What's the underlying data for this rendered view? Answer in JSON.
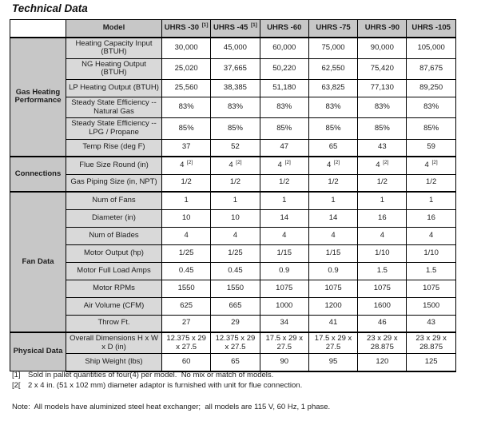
{
  "page_title": "Technical Data",
  "table": {
    "header": {
      "model_label": "Model",
      "columns": [
        {
          "name": "UHRS -30",
          "sup": "[1]"
        },
        {
          "name": "UHRS -45",
          "sup": "[1]"
        },
        {
          "name": "UHRS -60",
          "sup": ""
        },
        {
          "name": "UHRS -75",
          "sup": ""
        },
        {
          "name": "UHRS -90",
          "sup": ""
        },
        {
          "name": "UHRS -105",
          "sup": ""
        }
      ]
    },
    "sections": [
      {
        "group": "Gas Heating Performance",
        "rows": [
          {
            "label": "Heating Capacity Input (BTUH)",
            "values": [
              "30,000",
              "45,000",
              "60,000",
              "75,000",
              "90,000",
              "105,000"
            ]
          },
          {
            "label": "NG Heating Output (BTUH)",
            "values": [
              "25,020",
              "37,665",
              "50,220",
              "62,550",
              "75,420",
              "87,675"
            ]
          },
          {
            "label": "LP Heating Output (BTUH)",
            "values": [
              "25,560",
              "38,385",
              "51,180",
              "63,825",
              "77,130",
              "89,250"
            ]
          },
          {
            "label": "Steady State Efficiency -- Natural Gas",
            "values": [
              "83%",
              "83%",
              "83%",
              "83%",
              "83%",
              "83%"
            ]
          },
          {
            "label": "Steady State Efficiency -- LPG / Propane",
            "values": [
              "85%",
              "85%",
              "85%",
              "85%",
              "85%",
              "85%"
            ]
          },
          {
            "label": "Temp Rise (deg F)",
            "values": [
              "37",
              "52",
              "47",
              "65",
              "43",
              "59"
            ]
          }
        ]
      },
      {
        "group": "Connections",
        "rows": [
          {
            "label": "Flue Size Round (in)",
            "values": [
              "4",
              "4",
              "4",
              "4",
              "4",
              "4"
            ],
            "value_sup": "[2]"
          },
          {
            "label": "Gas Piping Size (in, NPT)",
            "values": [
              "1/2",
              "1/2",
              "1/2",
              "1/2",
              "1/2",
              "1/2"
            ]
          }
        ]
      },
      {
        "group": "Fan Data",
        "rows": [
          {
            "label": "Num of Fans",
            "values": [
              "1",
              "1",
              "1",
              "1",
              "1",
              "1"
            ]
          },
          {
            "label": "Diameter (in)",
            "values": [
              "10",
              "10",
              "14",
              "14",
              "16",
              "16"
            ]
          },
          {
            "label": "Num of Blades",
            "values": [
              "4",
              "4",
              "4",
              "4",
              "4",
              "4"
            ]
          },
          {
            "label": "Motor Output (hp)",
            "values": [
              "1/25",
              "1/25",
              "1/15",
              "1/15",
              "1/10",
              "1/10"
            ]
          },
          {
            "label": "Motor Full Load Amps",
            "values": [
              "0.45",
              "0.45",
              "0.9",
              "0.9",
              "1.5",
              "1.5"
            ]
          },
          {
            "label": "Motor RPMs",
            "values": [
              "1550",
              "1550",
              "1075",
              "1075",
              "1075",
              "1075"
            ]
          },
          {
            "label": "Air Volume (CFM)",
            "values": [
              "625",
              "665",
              "1000",
              "1200",
              "1600",
              "1500"
            ]
          },
          {
            "label": "Throw Ft.",
            "values": [
              "27",
              "29",
              "34",
              "41",
              "46",
              "43"
            ]
          }
        ]
      },
      {
        "group": "Physical Data",
        "rows": [
          {
            "label": "Overall Dimensions H x W x D (in)",
            "values": [
              "12.375 x 29 x 27.5",
              "12.375 x 29 x 27.5",
              "17.5 x 29 x 27.5",
              "17.5 x 29 x 27.5",
              "23 x 29 x 28.875",
              "23 x 29 x 28.875"
            ]
          },
          {
            "label": "Ship Weight (lbs)",
            "values": [
              "60",
              "65",
              "90",
              "95",
              "120",
              "125"
            ]
          }
        ]
      }
    ]
  },
  "footnotes": [
    {
      "marker": "[1]",
      "text": "Sold in pallet quantities of four(4) per model.  No mix or match of models."
    },
    {
      "marker": "[2[",
      "text": "2 x 4 in. (51 x 102 mm) diameter adaptor is furnished with unit for flue connection."
    }
  ],
  "note": "Note:  All models have aluminized steel heat exchanger;  all models are 115 V, 60 Hz, 1 phase.",
  "colors": {
    "header_bg": "#c7c7c7",
    "group_bg": "#c7c7c7",
    "label_bg": "#d9d9d9",
    "border": "#000000",
    "text": "#1c1c1c"
  }
}
